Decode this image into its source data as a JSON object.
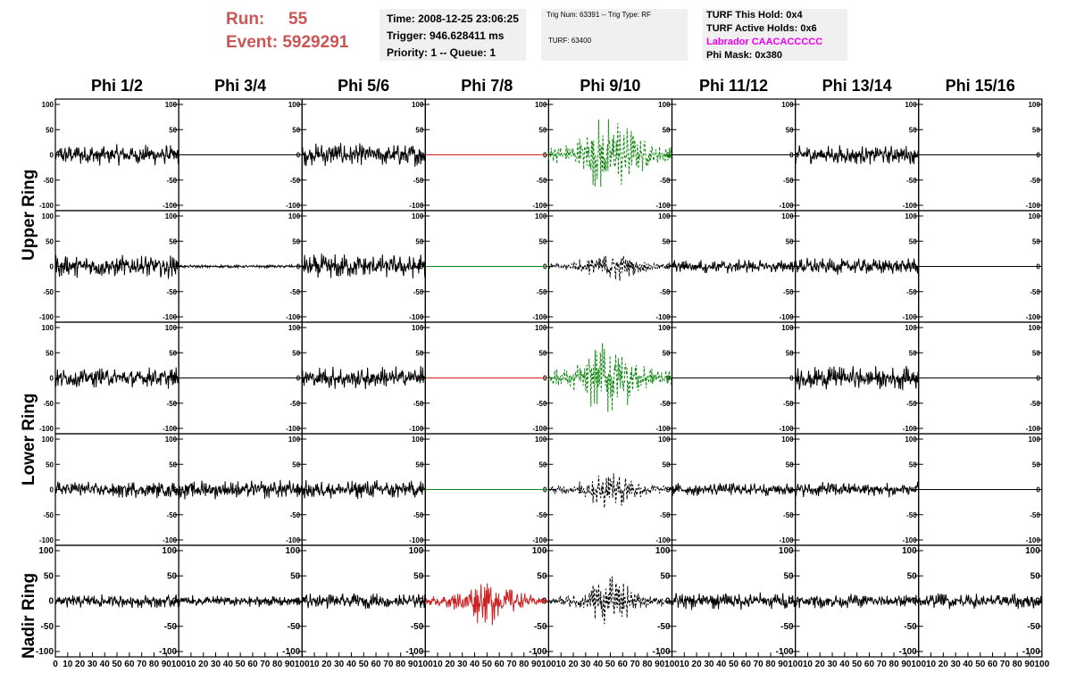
{
  "run": {
    "run_label": "Run:",
    "run_value": "55",
    "event_label": "Event:",
    "event_value": "5929291"
  },
  "info1": {
    "time": "Time: 2008-12-25 23:06:25",
    "trigger": "Trigger: 946.628411 ms",
    "priority": "Priority: 1 -- Queue: 1"
  },
  "info2": {
    "trig": "Trig Num: 63391 -- Trig Type: RF",
    "turf": "TURF: 63400"
  },
  "info3": {
    "hold": "TURF This Hold: 0x4",
    "active": "TURF Active Holds: 0x6",
    "labrador": "Labrador CAACACCCCC",
    "phimask": "Phi Mask: 0x380"
  },
  "columns": [
    "Phi 1/2",
    "Phi 3/4",
    "Phi 5/6",
    "Phi 7/8",
    "Phi 9/10",
    "Phi 11/12",
    "Phi 13/14",
    "Phi 15/16"
  ],
  "rows": [
    "Upper Ring",
    "Lower Ring",
    "Nadir Ring"
  ],
  "colors": {
    "trace": "#000000",
    "red": "#cc2222",
    "green": "#118811",
    "info_red": "#cc5555",
    "magenta": "#ee00ee"
  },
  "chart_data": {
    "type": "line",
    "x_ticks": [
      "0",
      "10",
      "20",
      "30",
      "40",
      "50",
      "60",
      "70",
      "80",
      "90",
      "100"
    ],
    "y_ticks": [
      "100",
      "50",
      "0",
      "-50",
      "-100"
    ],
    "xlim": [
      0,
      100
    ],
    "ylim": [
      -100,
      100
    ],
    "grid": false,
    "panels": [
      [
        {
          "amp": 22,
          "color": "black",
          "style": "solid"
        },
        {
          "amp": 0,
          "color": "black",
          "style": "solid"
        },
        {
          "amp": 24,
          "color": "black",
          "style": "solid"
        },
        {
          "amp": 0,
          "color": "red",
          "style": "solid"
        },
        {
          "amp": 70,
          "color": "green",
          "style": "dashed",
          "burst": true
        },
        {
          "amp": 0,
          "color": "black",
          "style": "solid"
        },
        {
          "amp": 20,
          "color": "black",
          "style": "solid"
        },
        {
          "amp": 0,
          "color": "black",
          "style": "solid"
        }
      ],
      [
        {
          "amp": 25,
          "color": "black",
          "style": "solid"
        },
        {
          "amp": 3,
          "color": "black",
          "style": "solid"
        },
        {
          "amp": 26,
          "color": "black",
          "style": "solid"
        },
        {
          "amp": 0,
          "color": "green",
          "style": "solid"
        },
        {
          "amp": 28,
          "color": "black",
          "style": "dashed",
          "burst": true
        },
        {
          "amp": 15,
          "color": "black",
          "style": "solid"
        },
        {
          "amp": 18,
          "color": "black",
          "style": "solid"
        },
        {
          "amp": 0,
          "color": "black",
          "style": "solid"
        }
      ],
      [
        {
          "amp": 22,
          "color": "black",
          "style": "solid"
        },
        {
          "amp": 0,
          "color": "black",
          "style": "solid"
        },
        {
          "amp": 24,
          "color": "black",
          "style": "solid"
        },
        {
          "amp": 0,
          "color": "red",
          "style": "solid"
        },
        {
          "amp": 70,
          "color": "green",
          "style": "dashed",
          "burst": true
        },
        {
          "amp": 0,
          "color": "black",
          "style": "solid"
        },
        {
          "amp": 25,
          "color": "black",
          "style": "solid"
        },
        {
          "amp": 0,
          "color": "black",
          "style": "solid"
        }
      ],
      [
        {
          "amp": 18,
          "color": "black",
          "style": "solid"
        },
        {
          "amp": 20,
          "color": "black",
          "style": "solid"
        },
        {
          "amp": 20,
          "color": "black",
          "style": "solid"
        },
        {
          "amp": 0,
          "color": "green",
          "style": "solid"
        },
        {
          "amp": 32,
          "color": "black",
          "style": "dashed",
          "burst": true
        },
        {
          "amp": 14,
          "color": "black",
          "style": "solid"
        },
        {
          "amp": 16,
          "color": "black",
          "style": "solid"
        },
        {
          "amp": 0,
          "color": "black",
          "style": "solid"
        }
      ],
      [
        {
          "amp": 14,
          "color": "black",
          "style": "solid"
        },
        {
          "amp": 12,
          "color": "black",
          "style": "solid"
        },
        {
          "amp": 16,
          "color": "black",
          "style": "solid"
        },
        {
          "amp": 42,
          "color": "red",
          "style": "solid",
          "burst": true
        },
        {
          "amp": 40,
          "color": "black",
          "style": "dashed",
          "burst": true
        },
        {
          "amp": 18,
          "color": "black",
          "style": "solid"
        },
        {
          "amp": 15,
          "color": "black",
          "style": "solid"
        },
        {
          "amp": 16,
          "color": "black",
          "style": "solid"
        }
      ]
    ]
  }
}
